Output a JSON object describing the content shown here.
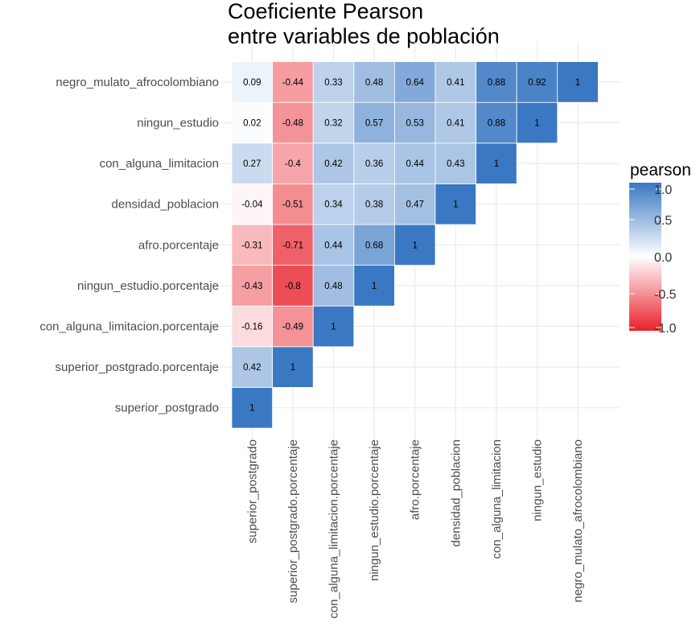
{
  "chart_data": {
    "type": "heatmap",
    "title": [
      "Coeficiente Pearson",
      "entre variables de población"
    ],
    "variables": [
      "superior_postgrado",
      "superior_postgrado.porcentaje",
      "con_alguna_limitacion.porcentaje",
      "ningun_estudio.porcentaje",
      "afro.porcentaje",
      "densidad_poblacion",
      "con_alguna_limitacion",
      "ningun_estudio",
      "negro_mulato_afrocolombiano"
    ],
    "matrix": [
      [
        1
      ],
      [
        0.42,
        1
      ],
      [
        -0.16,
        -0.49,
        1
      ],
      [
        -0.43,
        -0.8,
        0.48,
        1
      ],
      [
        -0.31,
        -0.71,
        0.44,
        0.68,
        1
      ],
      [
        -0.04,
        -0.51,
        0.34,
        0.38,
        0.47,
        1
      ],
      [
        0.27,
        -0.4,
        0.42,
        0.36,
        0.44,
        0.43,
        1
      ],
      [
        0.02,
        -0.48,
        0.32,
        0.57,
        0.53,
        0.41,
        0.88,
        1
      ],
      [
        0.09,
        -0.44,
        0.33,
        0.48,
        0.64,
        0.41,
        0.88,
        0.92,
        1
      ]
    ],
    "legend": {
      "title": "pearson",
      "ticks": [
        "1.0",
        "0.5",
        "0.0",
        "-0.5",
        "-1.0"
      ],
      "tick_values": [
        1,
        0.5,
        0,
        -0.5,
        -1
      ],
      "range": [
        -1,
        1
      ]
    },
    "colors": {
      "low": "#e8202a",
      "mid": "#ffffff",
      "high": "#3b78c3"
    },
    "grid": true
  }
}
